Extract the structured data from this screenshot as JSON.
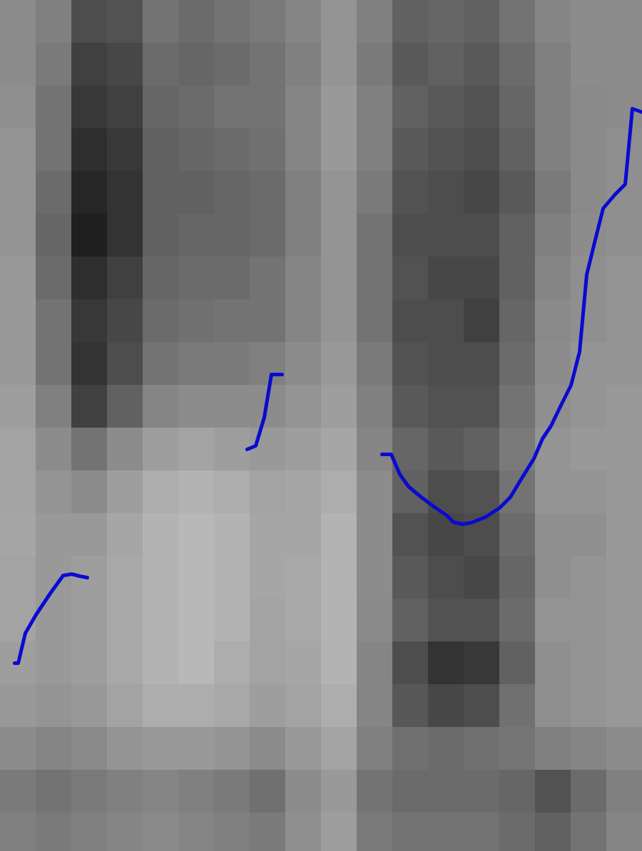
{
  "chart_data": {
    "type": "spectrogram",
    "tick_labels": false,
    "grid": false,
    "xlim": [
      0,
      900
    ],
    "ylim": [
      0,
      1194
    ],
    "color_range": [
      0,
      100
    ],
    "cells": {
      "x_edges": [
        0,
        50,
        100,
        150,
        200,
        250,
        300,
        350,
        400,
        450,
        500,
        550,
        600,
        650,
        700,
        750,
        800,
        850,
        900
      ],
      "y_edges": [
        1194,
        1134,
        1074,
        1014,
        954,
        894,
        834,
        774,
        714,
        654,
        594,
        534,
        474,
        414,
        354,
        294,
        234,
        174,
        114,
        54,
        0
      ],
      "values": [
        [
          45,
          50,
          70,
          68,
          55,
          58,
          55,
          52,
          48,
          42,
          50,
          62,
          60,
          62,
          55,
          48,
          45,
          45
        ],
        [
          45,
          52,
          75,
          72,
          58,
          60,
          58,
          55,
          50,
          42,
          52,
          65,
          62,
          65,
          58,
          50,
          45,
          45
        ],
        [
          44,
          55,
          78,
          75,
          60,
          58,
          55,
          55,
          48,
          40,
          50,
          62,
          65,
          68,
          60,
          50,
          46,
          45
        ],
        [
          42,
          55,
          82,
          78,
          62,
          60,
          58,
          56,
          48,
          40,
          50,
          65,
          68,
          70,
          62,
          50,
          46,
          44
        ],
        [
          42,
          58,
          85,
          80,
          62,
          62,
          60,
          58,
          50,
          42,
          52,
          68,
          70,
          72,
          65,
          52,
          46,
          44
        ],
        [
          42,
          60,
          88,
          80,
          62,
          60,
          60,
          58,
          50,
          42,
          55,
          70,
          70,
          70,
          62,
          50,
          45,
          44
        ],
        [
          40,
          58,
          82,
          75,
          60,
          58,
          58,
          55,
          48,
          42,
          55,
          68,
          72,
          72,
          62,
          48,
          44,
          42
        ],
        [
          40,
          55,
          78,
          72,
          58,
          56,
          55,
          55,
          48,
          42,
          55,
          70,
          70,
          75,
          60,
          46,
          44,
          42
        ],
        [
          40,
          55,
          80,
          70,
          55,
          52,
          52,
          50,
          45,
          40,
          52,
          68,
          70,
          70,
          58,
          45,
          42,
          42
        ],
        [
          38,
          50,
          75,
          62,
          48,
          45,
          45,
          45,
          42,
          38,
          50,
          65,
          68,
          68,
          55,
          44,
          42,
          40
        ],
        [
          36,
          45,
          55,
          45,
          38,
          36,
          38,
          40,
          38,
          35,
          48,
          60,
          65,
          62,
          52,
          42,
          40,
          40
        ],
        [
          36,
          42,
          45,
          38,
          32,
          30,
          32,
          36,
          35,
          32,
          45,
          62,
          70,
          68,
          55,
          42,
          42,
          40
        ],
        [
          35,
          40,
          40,
          35,
          30,
          28,
          30,
          35,
          35,
          30,
          45,
          68,
          72,
          70,
          58,
          44,
          44,
          40
        ],
        [
          36,
          40,
          38,
          34,
          30,
          28,
          30,
          35,
          34,
          30,
          45,
          65,
          70,
          72,
          60,
          44,
          42,
          40
        ],
        [
          36,
          40,
          38,
          34,
          30,
          28,
          30,
          36,
          34,
          30,
          46,
          62,
          68,
          68,
          58,
          42,
          42,
          40
        ],
        [
          38,
          40,
          38,
          34,
          30,
          28,
          32,
          36,
          35,
          30,
          48,
          70,
          80,
          78,
          62,
          44,
          42,
          40
        ],
        [
          40,
          42,
          40,
          36,
          32,
          32,
          34,
          38,
          36,
          32,
          48,
          66,
          72,
          70,
          56,
          44,
          42,
          40
        ],
        [
          45,
          48,
          46,
          42,
          40,
          40,
          42,
          45,
          40,
          36,
          50,
          56,
          58,
          56,
          54,
          50,
          48,
          45
        ],
        [
          52,
          55,
          52,
          50,
          48,
          50,
          52,
          56,
          45,
          40,
          55,
          58,
          58,
          58,
          60,
          68,
          58,
          50
        ],
        [
          50,
          52,
          50,
          48,
          46,
          48,
          50,
          52,
          44,
          38,
          52,
          55,
          55,
          55,
          58,
          62,
          55,
          48
        ]
      ]
    },
    "series": [
      {
        "type": "line",
        "color": "#0a0ad2",
        "line_style": "solid",
        "x": [
          20,
          25,
          35,
          50,
          70,
          88,
          100,
          112,
          122,
          null,
          346,
          358,
          370,
          380,
          395,
          null,
          535,
          548,
          560,
          572,
          590,
          610,
          625,
          635,
          648,
          660,
          680,
          700,
          715,
          730,
          748,
          760,
          772,
          785,
          800,
          812,
          822,
          833,
          845,
          862,
          876,
          886,
          900
        ],
        "values": [
          264,
          264,
          306,
          332,
          362,
          387,
          389,
          386,
          384,
          null,
          564,
          569,
          609,
          669,
          669,
          null,
          557,
          557,
          529,
          512,
          497,
          482,
          472,
          462,
          459,
          461,
          469,
          482,
          497,
          522,
          551,
          579,
          597,
          624,
          654,
          701,
          809,
          854,
          902,
          922,
          936,
          1042,
          1037
        ]
      }
    ]
  }
}
